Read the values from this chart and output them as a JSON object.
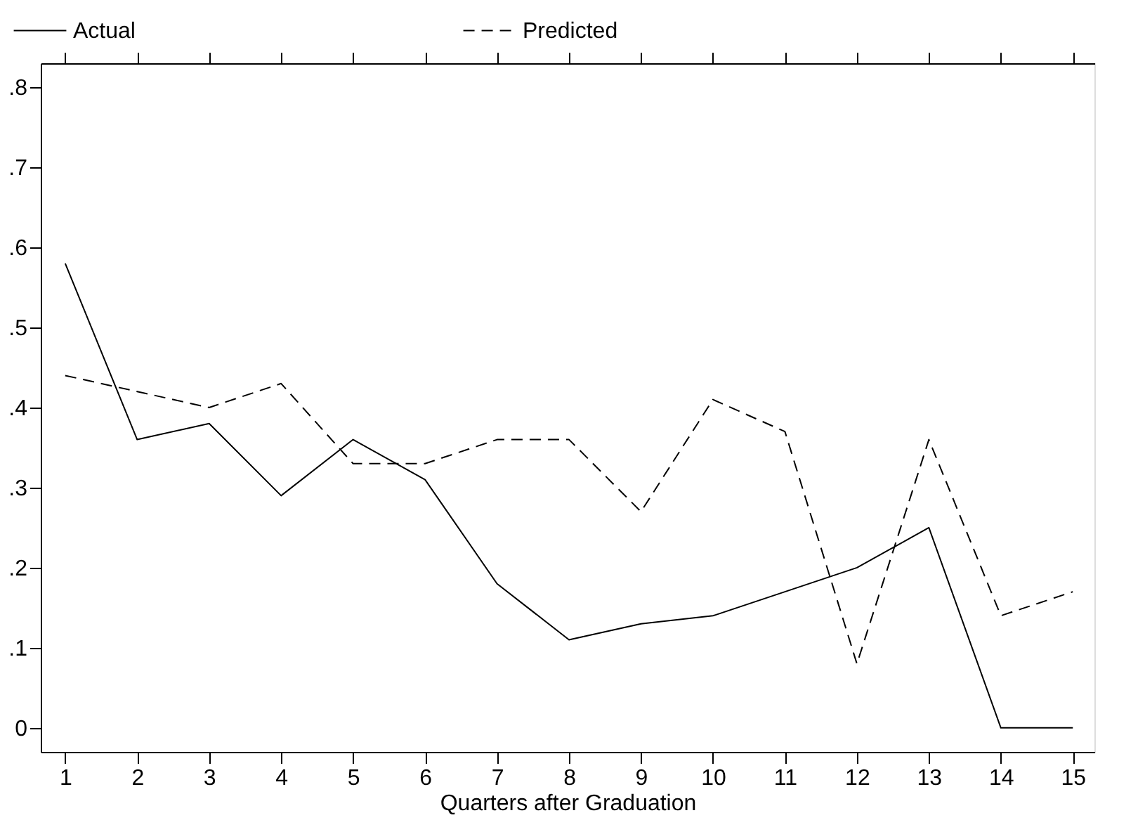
{
  "chart_data": {
    "type": "line",
    "xlabel": "Quarters after Graduation",
    "x": [
      1,
      2,
      3,
      4,
      5,
      6,
      7,
      8,
      9,
      10,
      11,
      12,
      13,
      14,
      15
    ],
    "series": [
      {
        "name": "Actual",
        "color": "#000000",
        "line_style": "solid",
        "values": [
          0.58,
          0.36,
          0.38,
          0.29,
          0.36,
          0.31,
          0.18,
          0.11,
          0.13,
          0.14,
          0.17,
          0.2,
          0.25,
          0,
          0
        ]
      },
      {
        "name": "Predicted",
        "color": "#000000",
        "line_style": "dashed",
        "values": [
          0.44,
          0.42,
          0.4,
          0.43,
          0.33,
          0.33,
          0.36,
          0.36,
          0.27,
          0.41,
          0.37,
          0.08,
          0.36,
          0.14,
          0.17
        ]
      }
    ],
    "xlim": [
      0.66,
      15.3
    ],
    "xticks": [
      1,
      2,
      3,
      4,
      5,
      6,
      7,
      8,
      9,
      10,
      11,
      12,
      13,
      14,
      15
    ],
    "ylim": [
      -0.03,
      0.83
    ],
    "yticks": [
      0,
      {
        "value": 0.1,
        "label": ".1"
      },
      {
        "value": 0.2,
        "label": ".2"
      },
      {
        "value": 0.3,
        "label": ".3"
      },
      {
        "value": 0.4,
        "label": ".4"
      },
      {
        "value": 0.5,
        "label": ".5"
      },
      {
        "value": 0.6,
        "label": ".6"
      },
      {
        "value": 0.7,
        "label": ".7"
      },
      {
        "value": 0.8,
        "label": ".8"
      }
    ],
    "grid": false,
    "legend": "top",
    "marker": "none"
  }
}
